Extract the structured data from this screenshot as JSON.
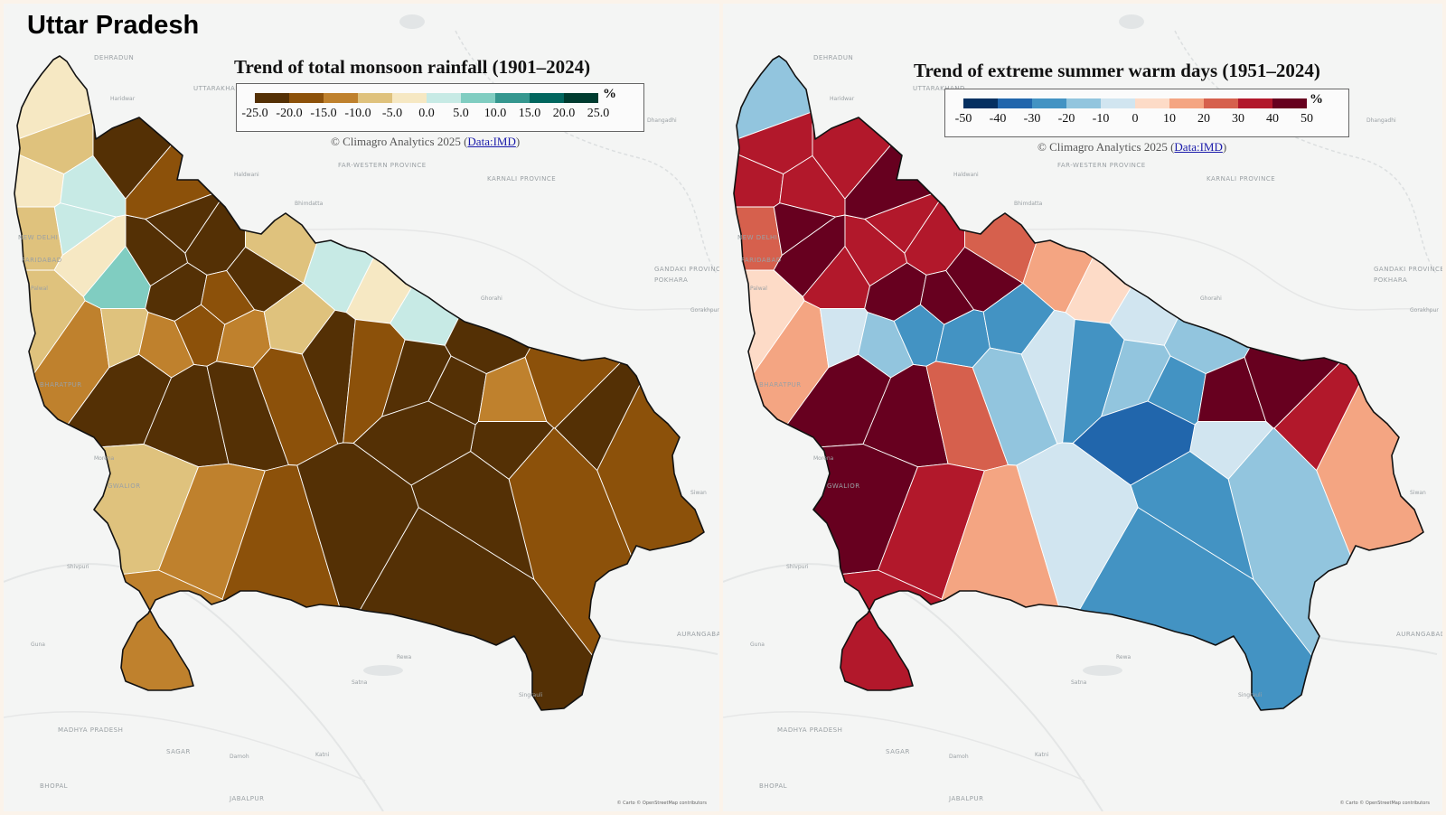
{
  "page_title": "Uttar Pradesh",
  "maps": [
    {
      "id": "rain",
      "title": "Trend of total monsoon rainfall (1901–2024)",
      "unit": "%",
      "credit_prefix": "© Climagro Analytics 2025 (",
      "credit_link": "Data:IMD",
      "credit_suffix": ")",
      "legend_ticks": [
        "-25.0",
        "-20.0",
        "-15.0",
        "-10.0",
        "-5.0",
        "0.0",
        "5.0",
        "10.0",
        "15.0",
        "20.0",
        "25.0"
      ],
      "legend_colors": [
        "#543005",
        "#8c510a",
        "#bf812d",
        "#dfc27d",
        "#f6e8c3",
        "#c7eae5",
        "#80cdc1",
        "#35978f",
        "#01665e",
        "#003c30"
      ],
      "attribution": "© Carto © OpenStreetMap contributors",
      "places": [
        "DEHRADUN",
        "UTTARAKHAND",
        "FAR-WESTERN PROVINCE",
        "KARNALI PROVINCE",
        "GANDAKI PROVINCE",
        "POKHARA",
        "Haridwar",
        "Haldwani",
        "Dhangadhi",
        "NEW DELHI",
        "FARIDABAD",
        "Palwal",
        "BHARATPUR",
        "Morena",
        "GWALIOR",
        "Shivpuri",
        "Guna",
        "MADHYA PRADESH",
        "SAGAR",
        "Damoh",
        "Katni",
        "Satna",
        "Rewa",
        "Singrauli",
        "BHOPAL",
        "JABALPUR",
        "AURANGABAD",
        "Siwan",
        "Gorakhpur",
        "Ghorahi",
        "Bhimdatta"
      ]
    },
    {
      "id": "heat",
      "title": "Trend of extreme summer warm days (1951–2024)",
      "unit": "%",
      "credit_prefix": "© Climagro Analytics 2025 (",
      "credit_link": "Data:IMD",
      "credit_suffix": ")",
      "legend_ticks": [
        "-50",
        "-40",
        "-30",
        "-20",
        "-10",
        "0",
        "10",
        "20",
        "30",
        "40",
        "50"
      ],
      "legend_colors": [
        "#053061",
        "#2166ac",
        "#4393c3",
        "#92c5de",
        "#d1e5f0",
        "#fddbc7",
        "#f4a582",
        "#d6604d",
        "#b2182b",
        "#67001f"
      ],
      "attribution": "© Carto © OpenStreetMap contributors",
      "places": [
        "DEHRADUN",
        "UTTARAKHAND",
        "FAR-WESTERN PROVINCE",
        "KARNALI PROVINCE",
        "GANDAKI PROVINCE",
        "POKHARA",
        "Haridwar",
        "Haldwani",
        "Dhangadhi",
        "NEW DELHI",
        "FARIDABAD",
        "Palwal",
        "BHARATPUR",
        "Morena",
        "GWALIOR",
        "Shivpuri",
        "Guna",
        "MADHYA PRADESH",
        "SAGAR",
        "Damoh",
        "Katni",
        "Satna",
        "Rewa",
        "Singrauli",
        "BHOPAL",
        "JABALPUR",
        "AURANGABAD",
        "Siwan",
        "Gorakhpur",
        "Ghorahi",
        "Bhimdatta"
      ]
    }
  ],
  "regions": [
    {
      "rain": 4,
      "heat": 3
    },
    {
      "rain": 3,
      "heat": 8
    },
    {
      "rain": 4,
      "heat": 8
    },
    {
      "rain": 5,
      "heat": 8
    },
    {
      "rain": 0,
      "heat": 8
    },
    {
      "rain": 3,
      "heat": 7
    },
    {
      "rain": 5,
      "heat": 9
    },
    {
      "rain": 4,
      "heat": 9
    },
    {
      "rain": 6,
      "heat": 8
    },
    {
      "rain": 0,
      "heat": 8
    },
    {
      "rain": 0,
      "heat": 8
    },
    {
      "rain": 0,
      "heat": 8
    },
    {
      "rain": 1,
      "heat": 9
    },
    {
      "rain": 3,
      "heat": 7
    },
    {
      "rain": 5,
      "heat": 6
    },
    {
      "rain": 4,
      "heat": 5
    },
    {
      "rain": 5,
      "heat": 4
    },
    {
      "rain": 0,
      "heat": 3
    },
    {
      "rain": 3,
      "heat": 5
    },
    {
      "rain": 0,
      "heat": 9
    },
    {
      "rain": 1,
      "heat": 9
    },
    {
      "rain": 0,
      "heat": 9
    },
    {
      "rain": 2,
      "heat": 6
    },
    {
      "rain": 3,
      "heat": 4
    },
    {
      "rain": 2,
      "heat": 3
    },
    {
      "rain": 1,
      "heat": 2
    },
    {
      "rain": 2,
      "heat": 2
    },
    {
      "rain": 3,
      "heat": 2
    },
    {
      "rain": 0,
      "heat": 9
    },
    {
      "rain": 0,
      "heat": 9
    },
    {
      "rain": 0,
      "heat": 7
    },
    {
      "rain": 1,
      "heat": 3
    },
    {
      "rain": 0,
      "heat": 4
    },
    {
      "rain": 1,
      "heat": 2
    },
    {
      "rain": 0,
      "heat": 3
    },
    {
      "rain": 0,
      "heat": 2
    },
    {
      "rain": 2,
      "heat": 9
    },
    {
      "rain": 1,
      "heat": 9
    },
    {
      "rain": 0,
      "heat": 8
    },
    {
      "rain": 1,
      "heat": 6
    },
    {
      "rain": 0,
      "heat": 4
    },
    {
      "rain": 1,
      "heat": 3
    },
    {
      "rain": 0,
      "heat": 2
    },
    {
      "rain": 0,
      "heat": 1
    },
    {
      "rain": 3,
      "heat": 9
    },
    {
      "rain": 2,
      "heat": 8
    },
    {
      "rain": 2,
      "heat": 8
    },
    {
      "rain": 1,
      "heat": 6
    },
    {
      "rain": 0,
      "heat": 4
    },
    {
      "rain": 0,
      "heat": 2
    }
  ]
}
